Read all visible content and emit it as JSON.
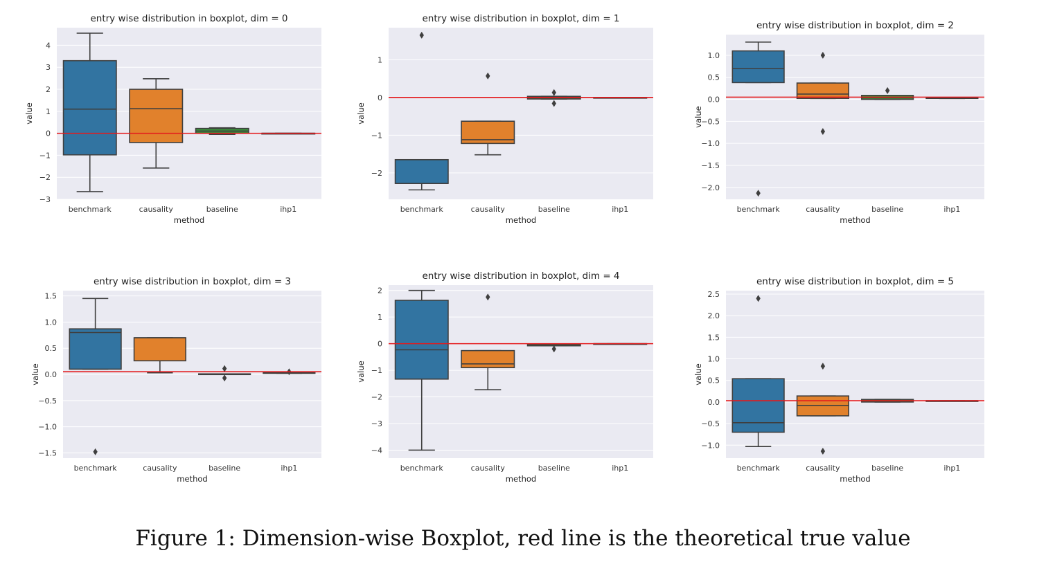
{
  "caption": "Figure 1: Dimension-wise Boxplot, red line is the theoretical true value",
  "colors": {
    "background": "#eaeaf2",
    "grid": "#ffffff",
    "edge": "#3f3f3f",
    "reference_line": "#e41a1c",
    "benchmark": "#3274a1",
    "causality": "#e1812c",
    "baseline": "#3a923a",
    "ihp1": "#c03d3e"
  },
  "chart_data": [
    {
      "type": "boxplot",
      "title": "entry wise distribution in boxplot, dim = 0",
      "xlabel": "method",
      "ylabel": "value",
      "ylim": [
        -3,
        4.8
      ],
      "yticks": [
        -3,
        -2,
        -1,
        0,
        1,
        2,
        3,
        4
      ],
      "ytick_labels": [
        "−3",
        "−2",
        "−1",
        "0",
        "1",
        "2",
        "3",
        "4"
      ],
      "reference_line": 0,
      "categories": [
        "benchmark",
        "causality",
        "baseline",
        "ihp1"
      ],
      "boxes": [
        {
          "whislo": -2.65,
          "q1": -0.98,
          "med": 1.1,
          "q3": 3.3,
          "whishi": 4.55,
          "fliers": []
        },
        {
          "whislo": -1.58,
          "q1": -0.42,
          "med": 1.12,
          "q3": 2.0,
          "whishi": 2.48,
          "fliers": []
        },
        {
          "whislo": -0.05,
          "q1": 0.0,
          "med": 0.1,
          "q3": 0.22,
          "whishi": 0.25,
          "fliers": []
        },
        {
          "whislo": 0.0,
          "q1": 0.0,
          "med": 0.0,
          "q3": 0.0,
          "whishi": 0.0,
          "fliers": []
        }
      ]
    },
    {
      "type": "boxplot",
      "title": "entry wise distribution in boxplot, dim = 1",
      "xlabel": "method",
      "ylabel": "value",
      "ylim": [
        -2.7,
        1.85
      ],
      "yticks": [
        -2,
        -1,
        0,
        1
      ],
      "ytick_labels": [
        "−2",
        "−1",
        "0",
        "1"
      ],
      "reference_line": 0,
      "categories": [
        "benchmark",
        "causality",
        "baseline",
        "ihp1"
      ],
      "boxes": [
        {
          "whislo": -2.45,
          "q1": -2.28,
          "med": -2.28,
          "q3": -1.65,
          "whishi": -1.65,
          "fliers": [
            1.65
          ]
        },
        {
          "whislo": -1.52,
          "q1": -1.22,
          "med": -1.12,
          "q3": -0.63,
          "whishi": -0.63,
          "fliers": [
            0.57
          ]
        },
        {
          "whislo": -0.04,
          "q1": -0.04,
          "med": -0.01,
          "q3": 0.03,
          "whishi": 0.03,
          "fliers": [
            0.13,
            -0.16
          ]
        },
        {
          "whislo": -0.01,
          "q1": -0.01,
          "med": 0.0,
          "q3": 0.0,
          "whishi": 0.0,
          "fliers": []
        }
      ]
    },
    {
      "type": "boxplot",
      "title": "entry wise distribution in boxplot, dim = 2",
      "xlabel": "method",
      "ylabel": "value",
      "ylim": [
        -2.27,
        1.47
      ],
      "yticks": [
        -2.0,
        -1.5,
        -1.0,
        -0.5,
        0.0,
        0.5,
        1.0
      ],
      "ytick_labels": [
        "−2.0",
        "−1.5",
        "−1.0",
        "−0.5",
        "0.0",
        "0.5",
        "1.0"
      ],
      "reference_line": 0.05,
      "categories": [
        "benchmark",
        "causality",
        "baseline",
        "ihp1"
      ],
      "boxes": [
        {
          "whislo": 0.38,
          "q1": 0.38,
          "med": 0.7,
          "q3": 1.1,
          "whishi": 1.3,
          "fliers": [
            -2.13
          ]
        },
        {
          "whislo": 0.02,
          "q1": 0.02,
          "med": 0.12,
          "q3": 0.37,
          "whishi": 0.37,
          "fliers": [
            1.0,
            -0.73
          ]
        },
        {
          "whislo": 0.0,
          "q1": 0.0,
          "med": 0.04,
          "q3": 0.09,
          "whishi": 0.09,
          "fliers": [
            0.2
          ]
        },
        {
          "whislo": 0.02,
          "q1": 0.02,
          "med": 0.03,
          "q3": 0.04,
          "whishi": 0.04,
          "fliers": []
        }
      ]
    },
    {
      "type": "boxplot",
      "title": "entry wise distribution in boxplot, dim = 3",
      "xlabel": "method",
      "ylabel": "value",
      "ylim": [
        -1.6,
        1.6
      ],
      "yticks": [
        -1.5,
        -1.0,
        -0.5,
        0.0,
        0.5,
        1.0,
        1.5
      ],
      "ytick_labels": [
        "−1.5",
        "−1.0",
        "−0.5",
        "0.0",
        "0.5",
        "1.0",
        "1.5"
      ],
      "reference_line": 0.05,
      "categories": [
        "benchmark",
        "causality",
        "baseline",
        "ihp1"
      ],
      "boxes": [
        {
          "whislo": 0.1,
          "q1": 0.1,
          "med": 0.8,
          "q3": 0.87,
          "whishi": 1.45,
          "fliers": [
            -1.48
          ]
        },
        {
          "whislo": 0.03,
          "q1": 0.26,
          "med": 0.7,
          "q3": 0.7,
          "whishi": 0.7,
          "fliers": []
        },
        {
          "whislo": 0.0,
          "q1": 0.0,
          "med": 0.01,
          "q3": 0.01,
          "whishi": 0.01,
          "fliers": [
            0.11,
            -0.07
          ]
        },
        {
          "whislo": 0.02,
          "q1": 0.02,
          "med": 0.03,
          "q3": 0.04,
          "whishi": 0.04,
          "fliers": [
            0.05
          ]
        }
      ]
    },
    {
      "type": "boxplot",
      "title": "entry wise distribution in boxplot, dim = 4",
      "xlabel": "method",
      "ylabel": "value",
      "ylim": [
        -4.3,
        2.2
      ],
      "yticks": [
        -4,
        -3,
        -2,
        -1,
        0,
        1,
        2
      ],
      "ytick_labels": [
        "−4",
        "−3",
        "−2",
        "−1",
        "0",
        "1",
        "2"
      ],
      "reference_line": 0,
      "categories": [
        "benchmark",
        "causality",
        "baseline",
        "ihp1"
      ],
      "boxes": [
        {
          "whislo": -4.0,
          "q1": -1.33,
          "med": -0.23,
          "q3": 1.63,
          "whishi": 2.0,
          "fliers": []
        },
        {
          "whislo": -1.73,
          "q1": -0.9,
          "med": -0.76,
          "q3": -0.26,
          "whishi": -0.26,
          "fliers": [
            1.75
          ]
        },
        {
          "whislo": -0.08,
          "q1": -0.08,
          "med": -0.03,
          "q3": -0.01,
          "whishi": -0.01,
          "fliers": [
            -0.2
          ]
        },
        {
          "whislo": -0.01,
          "q1": -0.01,
          "med": 0.0,
          "q3": 0.0,
          "whishi": 0.0,
          "fliers": []
        }
      ]
    },
    {
      "type": "boxplot",
      "title": "entry wise distribution in boxplot, dim = 5",
      "xlabel": "method",
      "ylabel": "value",
      "ylim": [
        -1.3,
        2.58
      ],
      "yticks": [
        -1.0,
        -0.5,
        0.0,
        0.5,
        1.0,
        1.5,
        2.0,
        2.5
      ],
      "ytick_labels": [
        "−1.0",
        "−0.5",
        "0.0",
        "0.5",
        "1.0",
        "1.5",
        "2.0",
        "2.5"
      ],
      "reference_line": 0.03,
      "categories": [
        "benchmark",
        "causality",
        "baseline",
        "ihp1"
      ],
      "boxes": [
        {
          "whislo": -1.03,
          "q1": -0.7,
          "med": -0.48,
          "q3": 0.54,
          "whishi": 0.54,
          "fliers": [
            2.4
          ]
        },
        {
          "whislo": -0.32,
          "q1": -0.32,
          "med": -0.08,
          "q3": 0.14,
          "whishi": 0.14,
          "fliers": [
            0.83,
            -1.14
          ]
        },
        {
          "whislo": 0.0,
          "q1": 0.0,
          "med": 0.03,
          "q3": 0.06,
          "whishi": 0.06,
          "fliers": []
        },
        {
          "whislo": 0.02,
          "q1": 0.02,
          "med": 0.03,
          "q3": 0.03,
          "whishi": 0.03,
          "fliers": []
        }
      ]
    }
  ]
}
